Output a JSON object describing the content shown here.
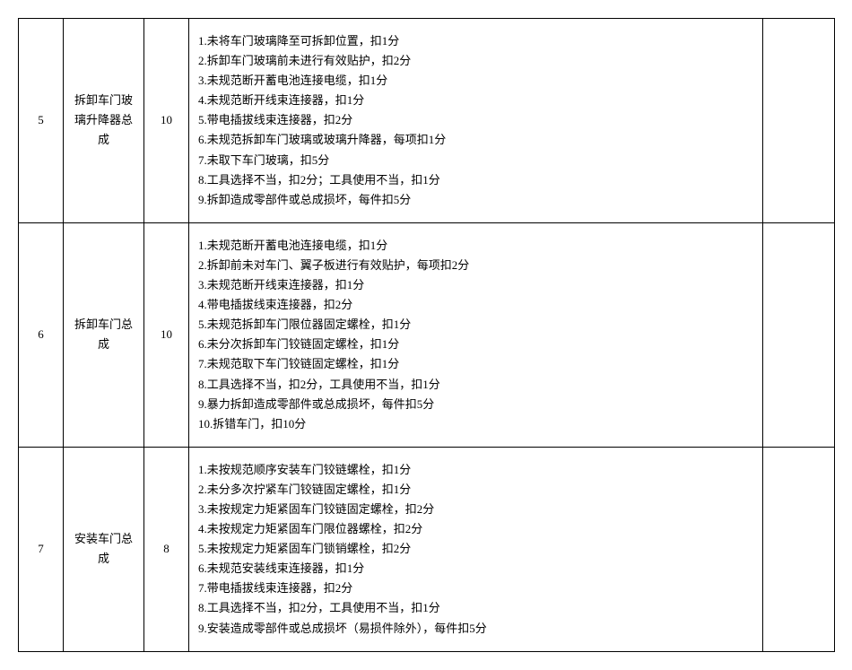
{
  "rows": [
    {
      "num": "5",
      "name": "拆卸车门玻璃升降器总成",
      "score": "10",
      "criteria": "1.未将车门玻璃降至可拆卸位置，扣1分\n2.拆卸车门玻璃前未进行有效贴护，扣2分\n3.未规范断开蓄电池连接电缆，扣1分\n4.未规范断开线束连接器，扣1分\n5.带电插拔线束连接器，扣2分\n6.未规范拆卸车门玻璃或玻璃升降器，每项扣1分\n7.未取下车门玻璃，扣5分\n8.工具选择不当，扣2分；工具使用不当，扣1分\n9.拆卸造成零部件或总成损坏，每件扣5分",
      "blank": ""
    },
    {
      "num": "6",
      "name": "拆卸车门总成",
      "score": "10",
      "criteria": "1.未规范断开蓄电池连接电缆，扣1分\n2.拆卸前未对车门、翼子板进行有效贴护，每项扣2分\n3.未规范断开线束连接器，扣1分\n4.带电插拔线束连接器，扣2分\n5.未规范拆卸车门限位器固定螺栓，扣1分\n6.未分次拆卸车门铰链固定螺栓，扣1分\n7.未规范取下车门铰链固定螺栓，扣1分\n8.工具选择不当，扣2分，工具使用不当，扣1分\n9.暴力拆卸造成零部件或总成损坏，每件扣5分\n10.拆错车门，扣10分",
      "blank": ""
    },
    {
      "num": "7",
      "name": "安装车门总 成",
      "score": "8",
      "criteria": "1.未按规范顺序安装车门铰链螺栓，扣1分\n2.未分多次拧紧车门铰链固定螺栓，扣1分\n3.未按规定力矩紧固车门铰链固定螺栓，扣2分\n4.未按规定力矩紧固车门限位器螺栓，扣2分\n5.未按规定力矩紧固车门锁销螺栓，扣2分\n6.未规范安装线束连接器，扣1分\n7.带电插拔线束连接器，扣2分\n8.工具选择不当，扣2分，工具使用不当，扣1分\n9.安装造成零部件或总成损坏（易损件除外），每件扣5分",
      "blank": ""
    }
  ]
}
